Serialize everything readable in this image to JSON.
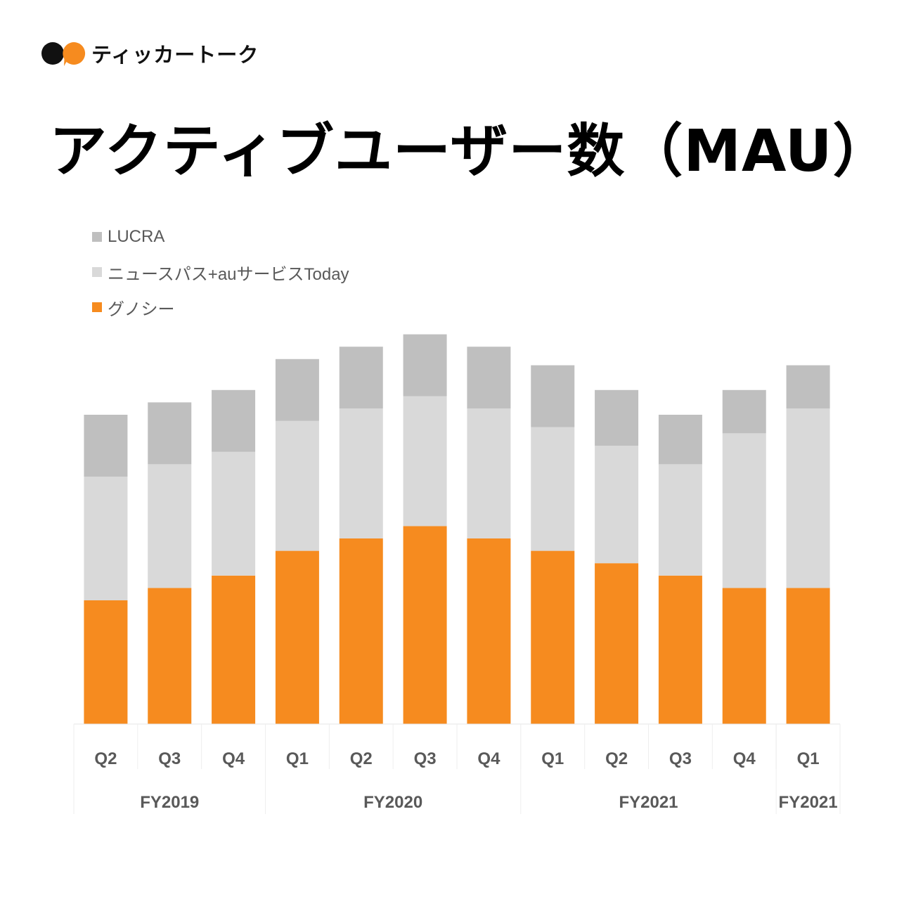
{
  "header": {
    "logo_name": "speech-bubbles-logo",
    "brand_name": "ティッカートーク",
    "title": "アクティブユーザー数（MAU）"
  },
  "colors": {
    "guno": "#F68B1F",
    "news": "#D9D9D9",
    "lucra": "#BFBFBF",
    "text": "#595959",
    "logo_dark": "#111111",
    "logo_orange": "#F68B1F"
  },
  "legend": [
    {
      "label": "LUCRA",
      "color": "#BFBFBF"
    },
    {
      "label": "ニュースパス+auサービスToday",
      "color": "#D9D9D9"
    },
    {
      "label": "グノシー",
      "color": "#F68B1F"
    }
  ],
  "chart_data": {
    "type": "bar",
    "stacked": true,
    "categories": [
      "Q2",
      "Q3",
      "Q4",
      "Q1",
      "Q2",
      "Q3",
      "Q4",
      "Q1",
      "Q2",
      "Q3",
      "Q4",
      "Q1"
    ],
    "groups": [
      {
        "label": "FY2019",
        "span": 3
      },
      {
        "label": "FY2020",
        "span": 4
      },
      {
        "label": "FY2021",
        "span": 4
      },
      {
        "label": "FY2021",
        "span": 1
      }
    ],
    "series": [
      {
        "name": "グノシー",
        "values": [
          20,
          22,
          24,
          28,
          30,
          32,
          30,
          28,
          26,
          24,
          22,
          22
        ]
      },
      {
        "name": "ニュースパス+auサービスToday",
        "values": [
          20,
          20,
          20,
          21,
          21,
          21,
          21,
          20,
          19,
          18,
          25,
          29
        ]
      },
      {
        "name": "LUCRA",
        "values": [
          10,
          10,
          10,
          10,
          10,
          10,
          10,
          10,
          9,
          8,
          7,
          7
        ]
      }
    ],
    "ylim": [
      0,
      63
    ],
    "y_ticks_visible": false,
    "grid": false,
    "legend_position": "top-left"
  }
}
